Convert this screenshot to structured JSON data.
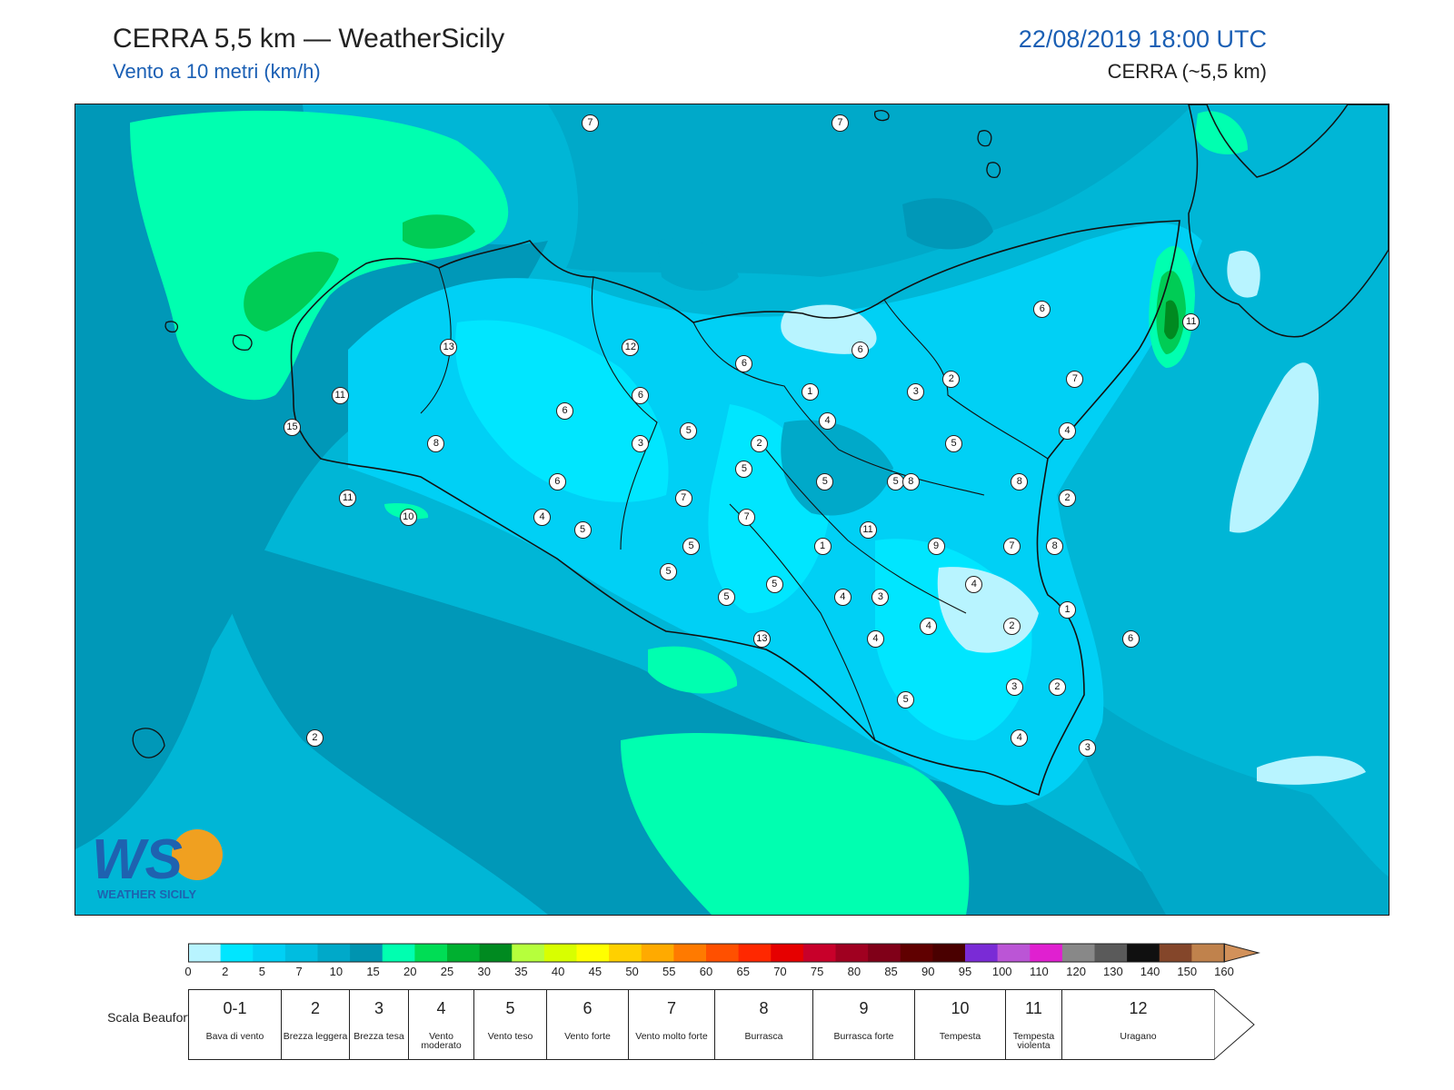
{
  "header": {
    "title": "CERRA 5,5 km — WeatherSicily",
    "subtitle": "Vento a 10 metri (km/h)",
    "datetime": "22/08/2019 18:00 UTC",
    "model": "CERRA (~5,5 km)"
  },
  "logo": {
    "letters": "WS",
    "text": "WEATHER SICILY",
    "icon": "weather-sicily-logo"
  },
  "map": {
    "colors": {
      "sea_dark": "#0098b8",
      "sea_mid": "#00b6d6",
      "sea_light": "#00d8f0",
      "land_light": "#00e6ff",
      "calm": "#b8f4ff",
      "green_light": "#00ffb0",
      "green_mid": "#00cc55",
      "green_dark": "#008a20"
    },
    "stations": [
      {
        "label": "7",
        "lon": 13.04,
        "lat": 38.72
      },
      {
        "label": "7",
        "lon": 14.03,
        "lat": 38.72
      },
      {
        "label": "6",
        "lon": 14.83,
        "lat": 38.14
      },
      {
        "label": "11",
        "lon": 15.42,
        "lat": 38.1
      },
      {
        "label": "6",
        "lon": 14.11,
        "lat": 38.01
      },
      {
        "label": "13",
        "lon": 12.48,
        "lat": 38.02
      },
      {
        "label": "12",
        "lon": 13.2,
        "lat": 38.02
      },
      {
        "label": "6",
        "lon": 13.65,
        "lat": 37.97
      },
      {
        "label": "2",
        "lon": 14.47,
        "lat": 37.92
      },
      {
        "label": "7",
        "lon": 14.96,
        "lat": 37.92
      },
      {
        "label": "11",
        "lon": 12.05,
        "lat": 37.87
      },
      {
        "label": "6",
        "lon": 13.24,
        "lat": 37.87
      },
      {
        "label": "1",
        "lon": 13.91,
        "lat": 37.88
      },
      {
        "label": "3",
        "lon": 14.33,
        "lat": 37.88
      },
      {
        "label": "6",
        "lon": 12.94,
        "lat": 37.82
      },
      {
        "label": "4",
        "lon": 13.98,
        "lat": 37.79
      },
      {
        "label": "15",
        "lon": 11.86,
        "lat": 37.77
      },
      {
        "label": "5",
        "lon": 13.43,
        "lat": 37.76
      },
      {
        "label": "4",
        "lon": 14.93,
        "lat": 37.76
      },
      {
        "label": "8",
        "lon": 12.43,
        "lat": 37.72
      },
      {
        "label": "3",
        "lon": 13.24,
        "lat": 37.72
      },
      {
        "label": "2",
        "lon": 13.71,
        "lat": 37.72
      },
      {
        "label": "5",
        "lon": 14.48,
        "lat": 37.72
      },
      {
        "label": "5",
        "lon": 13.65,
        "lat": 37.64
      },
      {
        "label": "5",
        "lon": 13.97,
        "lat": 37.6
      },
      {
        "label": "5",
        "lon": 14.25,
        "lat": 37.6
      },
      {
        "label": "8",
        "lon": 14.31,
        "lat": 37.6
      },
      {
        "label": "8",
        "lon": 14.74,
        "lat": 37.6
      },
      {
        "label": "6",
        "lon": 12.91,
        "lat": 37.6
      },
      {
        "label": "7",
        "lon": 13.41,
        "lat": 37.55
      },
      {
        "label": "11",
        "lon": 12.08,
        "lat": 37.55
      },
      {
        "label": "2",
        "lon": 14.93,
        "lat": 37.55
      },
      {
        "label": "10",
        "lon": 12.32,
        "lat": 37.49
      },
      {
        "label": "4",
        "lon": 12.85,
        "lat": 37.49
      },
      {
        "label": "7",
        "lon": 13.66,
        "lat": 37.49
      },
      {
        "label": "5",
        "lon": 13.01,
        "lat": 37.45
      },
      {
        "label": "11",
        "lon": 14.14,
        "lat": 37.45
      },
      {
        "label": "5",
        "lon": 13.44,
        "lat": 37.4
      },
      {
        "label": "1",
        "lon": 13.96,
        "lat": 37.4
      },
      {
        "label": "9",
        "lon": 14.41,
        "lat": 37.4
      },
      {
        "label": "7",
        "lon": 14.71,
        "lat": 37.4
      },
      {
        "label": "8",
        "lon": 14.88,
        "lat": 37.4
      },
      {
        "label": "5",
        "lon": 13.35,
        "lat": 37.32
      },
      {
        "label": "5",
        "lon": 13.77,
        "lat": 37.28
      },
      {
        "label": "4",
        "lon": 14.56,
        "lat": 37.28
      },
      {
        "label": "5",
        "lon": 13.58,
        "lat": 37.24
      },
      {
        "label": "4",
        "lon": 14.04,
        "lat": 37.24
      },
      {
        "label": "3",
        "lon": 14.19,
        "lat": 37.24
      },
      {
        "label": "1",
        "lon": 14.93,
        "lat": 37.2
      },
      {
        "label": "4",
        "lon": 14.38,
        "lat": 37.15
      },
      {
        "label": "2",
        "lon": 14.71,
        "lat": 37.15
      },
      {
        "label": "13",
        "lon": 13.72,
        "lat": 37.11
      },
      {
        "label": "4",
        "lon": 14.17,
        "lat": 37.11
      },
      {
        "label": "6",
        "lon": 15.18,
        "lat": 37.11
      },
      {
        "label": "3",
        "lon": 14.72,
        "lat": 36.96
      },
      {
        "label": "2",
        "lon": 14.89,
        "lat": 36.96
      },
      {
        "label": "5",
        "lon": 14.29,
        "lat": 36.92
      },
      {
        "label": "4",
        "lon": 14.74,
        "lat": 36.8
      },
      {
        "label": "3",
        "lon": 15.01,
        "lat": 36.77
      },
      {
        "label": "2",
        "lon": 11.95,
        "lat": 36.8
      }
    ]
  },
  "colorbar": {
    "ticks": [
      "0",
      "2",
      "5",
      "7",
      "10",
      "15",
      "20",
      "25",
      "30",
      "35",
      "40",
      "45",
      "50",
      "55",
      "60",
      "65",
      "70",
      "75",
      "80",
      "85",
      "90",
      "95",
      "100",
      "110",
      "120",
      "130",
      "140",
      "150",
      "160"
    ],
    "colors": [
      "#b8f4ff",
      "#00e6ff",
      "#00d0f5",
      "#00bde0",
      "#00a9c9",
      "#0094b0",
      "#00ffb0",
      "#00dd55",
      "#00b030",
      "#008a20",
      "#b6ff3c",
      "#d8ff00",
      "#ffff00",
      "#ffd000",
      "#ffaa00",
      "#ff7a00",
      "#ff5000",
      "#ff2800",
      "#e60000",
      "#c8002a",
      "#a00020",
      "#800018",
      "#600000",
      "#4a0000",
      "#7a2bd6",
      "#bb55d6",
      "#e020d0",
      "#888888",
      "#5a5a5a",
      "#101010",
      "#84462a",
      "#c0824c"
    ],
    "arrow_color": "#d2915a"
  },
  "beaufort": {
    "label": "Scala Beaufort",
    "cells": [
      {
        "num": "0-1",
        "desc": "Bava di vento"
      },
      {
        "num": "2",
        "desc": "Brezza leggera"
      },
      {
        "num": "3",
        "desc": "Brezza tesa"
      },
      {
        "num": "4",
        "desc": "Vento moderato"
      },
      {
        "num": "5",
        "desc": "Vento teso"
      },
      {
        "num": "6",
        "desc": "Vento forte"
      },
      {
        "num": "7",
        "desc": "Vento molto forte"
      },
      {
        "num": "8",
        "desc": "Burrasca"
      },
      {
        "num": "9",
        "desc": "Burrasca forte"
      },
      {
        "num": "10",
        "desc": "Tempesta"
      },
      {
        "num": "11",
        "desc": "Tempesta violenta"
      },
      {
        "num": "12",
        "desc": "Uragano"
      }
    ]
  }
}
